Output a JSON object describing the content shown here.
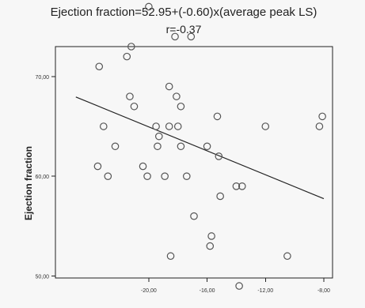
{
  "chart_data": {
    "type": "scatter",
    "title": "Ejection fraction=52.95+(-0.60)x(average peak LS)",
    "subtitle": "r=-0.37",
    "xlabel": "",
    "ylabel": "Ejection fraction",
    "xlim": [
      -26.4,
      -7.4
    ],
    "ylim": [
      49.8,
      73.0
    ],
    "x_ticks": [
      {
        "value": -20,
        "label": "-20,00"
      },
      {
        "value": -16,
        "label": "-16,00"
      },
      {
        "value": -12,
        "label": "-12,00"
      },
      {
        "value": -8,
        "label": "-8,00"
      }
    ],
    "y_ticks": [
      {
        "value": 70,
        "label": "70,00"
      },
      {
        "value": 60,
        "label": "60,00"
      },
      {
        "value": 50,
        "label": "50,00"
      }
    ],
    "grid": false,
    "legend": "none",
    "regression": {
      "intercept": 52.95,
      "slope": -0.6,
      "x_range": [
        -25,
        -8
      ]
    },
    "points": [
      {
        "x": -20.0,
        "y": 77.0
      },
      {
        "x": -18.2,
        "y": 74.0
      },
      {
        "x": -17.1,
        "y": 74.0
      },
      {
        "x": -21.2,
        "y": 73.0
      },
      {
        "x": -21.5,
        "y": 72.0
      },
      {
        "x": -23.4,
        "y": 71.0
      },
      {
        "x": -18.6,
        "y": 69.0
      },
      {
        "x": -21.3,
        "y": 68.0
      },
      {
        "x": -18.1,
        "y": 68.0
      },
      {
        "x": -21.0,
        "y": 67.0
      },
      {
        "x": -17.8,
        "y": 67.0
      },
      {
        "x": -15.3,
        "y": 66.0
      },
      {
        "x": -8.1,
        "y": 66.0
      },
      {
        "x": -19.5,
        "y": 65.0
      },
      {
        "x": -18.6,
        "y": 65.0
      },
      {
        "x": -18.0,
        "y": 65.0
      },
      {
        "x": -23.1,
        "y": 65.0
      },
      {
        "x": -12.0,
        "y": 65.0
      },
      {
        "x": -8.3,
        "y": 65.0
      },
      {
        "x": -19.3,
        "y": 64.0
      },
      {
        "x": -22.3,
        "y": 63.0
      },
      {
        "x": -19.4,
        "y": 63.0
      },
      {
        "x": -17.8,
        "y": 63.0
      },
      {
        "x": -16.0,
        "y": 63.0
      },
      {
        "x": -15.2,
        "y": 62.0
      },
      {
        "x": -23.5,
        "y": 61.0
      },
      {
        "x": -20.4,
        "y": 61.0
      },
      {
        "x": -22.8,
        "y": 60.0
      },
      {
        "x": -20.1,
        "y": 60.0
      },
      {
        "x": -18.9,
        "y": 60.0
      },
      {
        "x": -17.4,
        "y": 60.0
      },
      {
        "x": -14.0,
        "y": 59.0
      },
      {
        "x": -13.6,
        "y": 59.0
      },
      {
        "x": -15.1,
        "y": 58.0
      },
      {
        "x": -16.9,
        "y": 56.0
      },
      {
        "x": -15.7,
        "y": 54.0
      },
      {
        "x": -15.8,
        "y": 53.0
      },
      {
        "x": -18.5,
        "y": 52.0
      },
      {
        "x": -10.5,
        "y": 52.0
      },
      {
        "x": -13.8,
        "y": 49.0
      }
    ]
  }
}
